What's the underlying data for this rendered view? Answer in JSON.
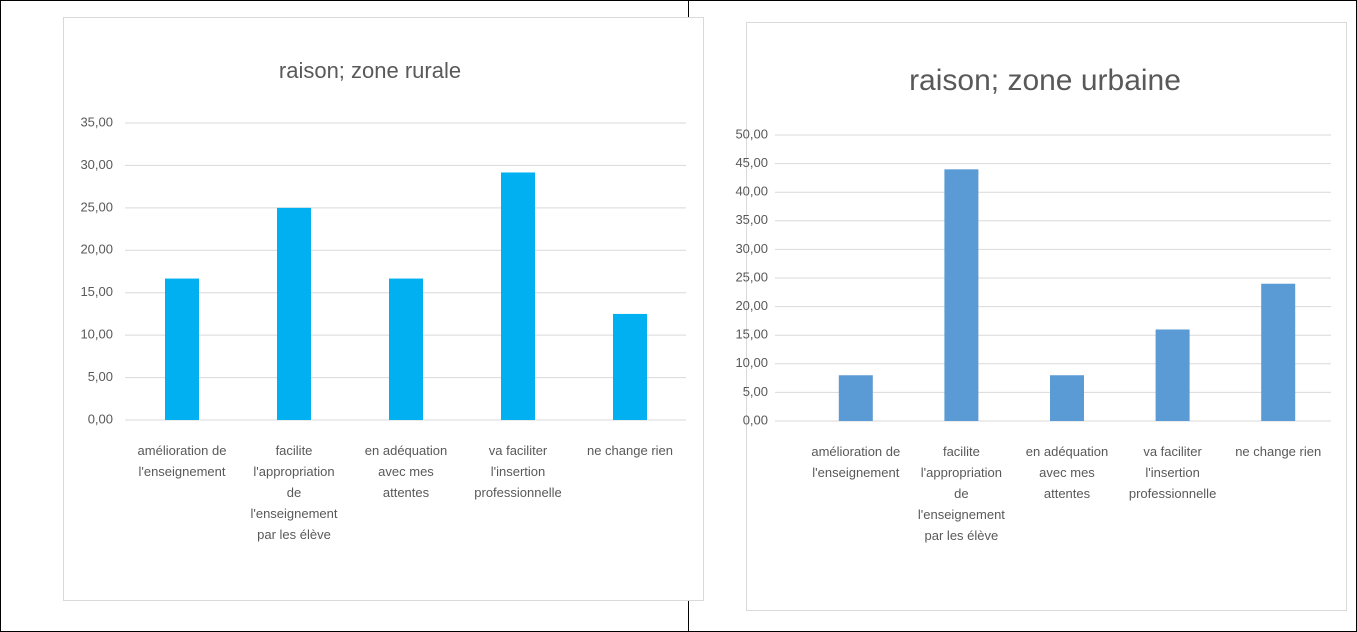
{
  "chart_data": [
    {
      "type": "bar",
      "title": "raison; zone rurale",
      "categories": [
        "amélioration de l'enseignement",
        "facilite l'appropriation de l'enseignement par les élève",
        "en adéquation avec mes attentes",
        "va faciliter l'insertion professionnelle",
        "ne change rien"
      ],
      "values": [
        16.67,
        25,
        16.67,
        29.17,
        12.5
      ],
      "color": "#00b0f0",
      "ylim": [
        0,
        35
      ],
      "yticks": [
        {
          "value": 0,
          "label": "0,00"
        },
        {
          "value": 5,
          "label": "5,00"
        },
        {
          "value": 10,
          "label": "10,00"
        },
        {
          "value": 15,
          "label": "15,00"
        },
        {
          "value": 20,
          "label": "20,00"
        },
        {
          "value": 25,
          "label": "25,00"
        },
        {
          "value": 30,
          "label": "30,00"
        },
        {
          "value": 35,
          "label": "35,00"
        }
      ],
      "grid": true
    },
    {
      "type": "bar",
      "title": "raison; zone urbaine",
      "categories": [
        "amélioration de l'enseignement",
        "facilite l'appropriation de l'enseignement par les élève",
        "en adéquation avec mes attentes",
        "va faciliter l'insertion professionnelle",
        "ne change rien"
      ],
      "values": [
        8,
        44,
        8,
        16,
        24
      ],
      "color": "#5b9bd5",
      "ylim": [
        0,
        50
      ],
      "yticks": [
        {
          "value": 0,
          "label": "0,00"
        },
        {
          "value": 5,
          "label": "5,00"
        },
        {
          "value": 10,
          "label": "10,00"
        },
        {
          "value": 15,
          "label": "15,00"
        },
        {
          "value": 20,
          "label": "20,00"
        },
        {
          "value": 25,
          "label": "25,00"
        },
        {
          "value": 30,
          "label": "30,00"
        },
        {
          "value": 35,
          "label": "35,00"
        },
        {
          "value": 40,
          "label": "40,00"
        },
        {
          "value": 45,
          "label": "45,00"
        },
        {
          "value": 50,
          "label": "50,00"
        }
      ],
      "grid": true
    }
  ]
}
